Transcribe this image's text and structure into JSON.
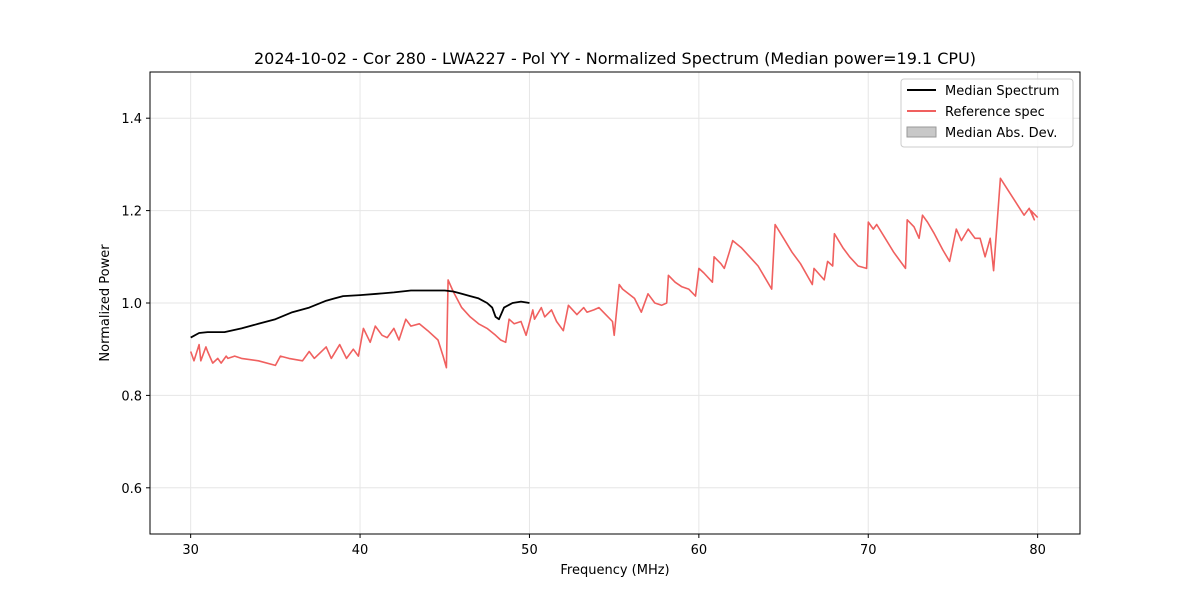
{
  "chart_data": {
    "type": "line",
    "title": "2024-10-02 - Cor 280 - LWA227 - Pol YY - Normalized Spectrum (Median power=19.1 CPU)",
    "xlabel": "Frequency (MHz)",
    "ylabel": "Normalized Power",
    "xlim": [
      27.6,
      82.5
    ],
    "ylim": [
      0.5,
      1.5
    ],
    "xticks": [
      30,
      40,
      50,
      60,
      70,
      80
    ],
    "yticks": [
      0.6,
      0.8,
      1.0,
      1.2,
      1.4
    ],
    "xtick_labels": [
      "30",
      "40",
      "50",
      "60",
      "70",
      "80"
    ],
    "ytick_labels": [
      "0.6",
      "0.8",
      "1.0",
      "1.2",
      "1.4"
    ],
    "grid": true,
    "legend_position": "top-right",
    "legend": [
      "Median Spectrum",
      "Reference spec",
      "Median Abs. Dev."
    ],
    "series": [
      {
        "name": "Median Spectrum",
        "color": "#000000",
        "x": [
          30.0,
          30.5,
          31.0,
          32.0,
          33.0,
          34.0,
          35.0,
          36.0,
          37.0,
          38.0,
          38.5,
          39.0,
          40.0,
          41.0,
          42.0,
          43.0,
          44.0,
          45.0,
          45.5,
          46.0,
          46.5,
          47.0,
          47.5,
          47.8,
          48.0,
          48.2,
          48.5,
          49.0,
          49.5,
          50.0
        ],
        "y": [
          0.925,
          0.935,
          0.937,
          0.937,
          0.945,
          0.955,
          0.965,
          0.98,
          0.99,
          1.005,
          1.01,
          1.015,
          1.017,
          1.02,
          1.023,
          1.027,
          1.027,
          1.027,
          1.025,
          1.02,
          1.015,
          1.01,
          1.0,
          0.99,
          0.97,
          0.965,
          0.99,
          1.0,
          1.003,
          1.0
        ]
      },
      {
        "name": "Reference spec",
        "color": "#f0605f",
        "x": [
          30.0,
          30.2,
          30.5,
          30.6,
          30.9,
          31.0,
          31.3,
          31.6,
          31.8,
          32.1,
          32.2,
          32.6,
          33.0,
          34.0,
          35.0,
          35.3,
          35.8,
          36.6,
          37.0,
          37.3,
          38.0,
          38.3,
          38.8,
          39.2,
          39.6,
          39.9,
          40.2,
          40.6,
          40.9,
          41.3,
          41.6,
          42.0,
          42.3,
          42.7,
          43.0,
          43.5,
          44.0,
          44.6,
          44.9,
          45.1,
          45.2,
          45.5,
          46.0,
          46.5,
          47.0,
          47.5,
          48.0,
          48.3,
          48.6,
          48.8,
          49.1,
          49.5,
          49.8,
          50.2,
          50.3,
          50.7,
          50.9,
          51.3,
          51.6,
          52.0,
          52.3,
          52.8,
          53.2,
          53.4,
          53.8,
          54.1,
          54.5,
          54.9,
          55.0,
          55.3,
          55.5,
          56.2,
          56.6,
          57.0,
          57.4,
          57.8,
          58.1,
          58.2,
          58.6,
          59.0,
          59.4,
          59.8,
          60.0,
          60.3,
          60.8,
          60.9,
          61.3,
          61.5,
          61.8,
          62.0,
          62.5,
          63.0,
          63.5,
          64.3,
          64.5,
          65.0,
          65.5,
          66.0,
          66.7,
          66.8,
          67.4,
          67.6,
          67.9,
          68.0,
          68.5,
          68.9,
          69.4,
          69.9,
          70.0,
          70.3,
          70.5,
          71.0,
          71.5,
          72.2,
          72.3,
          72.7,
          73.0,
          73.2,
          73.5,
          73.9,
          74.4,
          74.8,
          75.2,
          75.5,
          75.9,
          76.3,
          76.6,
          76.9,
          77.2,
          77.4,
          77.8,
          79.2,
          79.5,
          79.8,
          79.6,
          80.0
        ],
        "y": [
          0.895,
          0.875,
          0.91,
          0.875,
          0.905,
          0.895,
          0.87,
          0.88,
          0.87,
          0.885,
          0.88,
          0.885,
          0.88,
          0.875,
          0.865,
          0.885,
          0.88,
          0.875,
          0.895,
          0.88,
          0.905,
          0.88,
          0.91,
          0.88,
          0.9,
          0.885,
          0.945,
          0.915,
          0.95,
          0.93,
          0.925,
          0.945,
          0.92,
          0.965,
          0.95,
          0.955,
          0.94,
          0.92,
          0.885,
          0.86,
          1.05,
          1.025,
          0.99,
          0.97,
          0.955,
          0.945,
          0.93,
          0.92,
          0.915,
          0.965,
          0.955,
          0.96,
          0.93,
          0.985,
          0.965,
          0.99,
          0.97,
          0.985,
          0.96,
          0.94,
          0.995,
          0.975,
          0.99,
          0.98,
          0.985,
          0.99,
          0.975,
          0.96,
          0.93,
          1.04,
          1.03,
          1.01,
          0.98,
          1.02,
          1.0,
          0.995,
          1.0,
          1.06,
          1.045,
          1.035,
          1.03,
          1.015,
          1.075,
          1.065,
          1.045,
          1.1,
          1.085,
          1.075,
          1.11,
          1.135,
          1.12,
          1.1,
          1.08,
          1.03,
          1.17,
          1.14,
          1.11,
          1.085,
          1.04,
          1.075,
          1.05,
          1.09,
          1.08,
          1.15,
          1.12,
          1.1,
          1.08,
          1.075,
          1.175,
          1.16,
          1.17,
          1.14,
          1.11,
          1.075,
          1.18,
          1.165,
          1.14,
          1.19,
          1.175,
          1.15,
          1.115,
          1.09,
          1.16,
          1.135,
          1.16,
          1.14,
          1.14,
          1.1,
          1.14,
          1.07,
          1.27,
          1.19,
          1.205,
          1.18,
          1.2,
          1.185
        ]
      }
    ]
  }
}
